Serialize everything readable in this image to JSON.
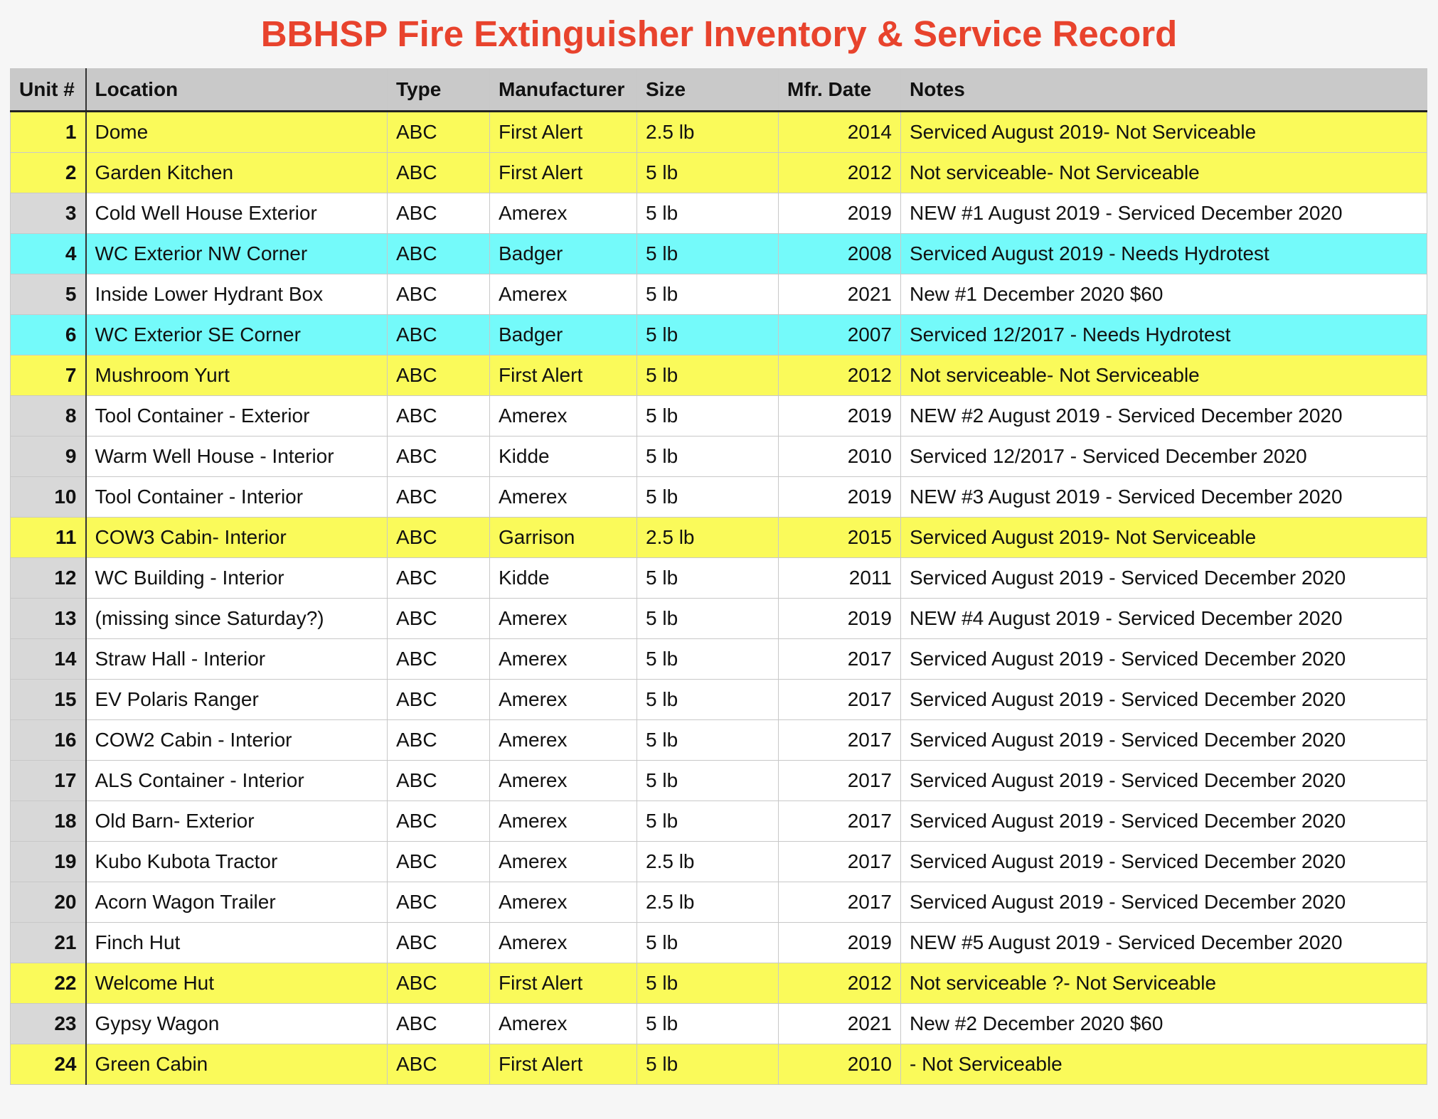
{
  "title": "BBHSP Fire Extinguisher Inventory & Service Record",
  "colors": {
    "title": "#e8432d",
    "header_bg": "#c9c9c9",
    "highlight_yellow": "#fafa5a",
    "highlight_cyan": "#74fafa",
    "unit_col_bg": "#d8d8d8"
  },
  "columns": [
    "Unit #",
    "Location",
    "Type",
    "Manufacturer",
    "Size",
    "Mfr. Date",
    "Notes"
  ],
  "rows": [
    {
      "unit": "1",
      "location": "Dome",
      "type": "ABC",
      "manufacturer": "First Alert",
      "size": "2.5 lb",
      "mfr_date": "2014",
      "notes": "Serviced  August 2019- Not Serviceable",
      "highlight": "yellow"
    },
    {
      "unit": "2",
      "location": "Garden Kitchen",
      "type": "ABC",
      "manufacturer": "First Alert",
      "size": "5 lb",
      "mfr_date": "2012",
      "notes": "Not serviceable- Not Serviceable",
      "highlight": "yellow"
    },
    {
      "unit": "3",
      "location": "Cold Well House Exterior",
      "type": "ABC",
      "manufacturer": "Amerex",
      "size": "5 lb",
      "mfr_date": "2019",
      "notes": "NEW #1 August 2019 - Serviced December 2020",
      "highlight": ""
    },
    {
      "unit": "4",
      "location": "WC Exterior NW Corner",
      "type": "ABC",
      "manufacturer": "Badger",
      "size": "5 lb",
      "mfr_date": "2008",
      "notes": "Serviced August 2019 - Needs Hydrotest",
      "highlight": "cyan"
    },
    {
      "unit": "5",
      "location": "Inside Lower Hydrant Box",
      "type": "ABC",
      "manufacturer": "Amerex",
      "size": "5 lb",
      "mfr_date": "2021",
      "notes": "New #1 December 2020  $60",
      "highlight": ""
    },
    {
      "unit": "6",
      "location": "WC Exterior SE Corner",
      "type": "ABC",
      "manufacturer": "Badger",
      "size": "5 lb",
      "mfr_date": "2007",
      "notes": "Serviced 12/2017 - Needs Hydrotest",
      "highlight": "cyan"
    },
    {
      "unit": "7",
      "location": "Mushroom Yurt",
      "type": "ABC",
      "manufacturer": "First Alert",
      "size": "5 lb",
      "mfr_date": "2012",
      "notes": "Not serviceable- Not Serviceable",
      "highlight": "yellow"
    },
    {
      "unit": "8",
      "location": "Tool Container - Exterior",
      "type": "ABC",
      "manufacturer": "Amerex",
      "size": "5 lb",
      "mfr_date": "2019",
      "notes": "NEW #2 August 2019 - Serviced December 2020",
      "highlight": ""
    },
    {
      "unit": "9",
      "location": "Warm Well House - Interior",
      "type": "ABC",
      "manufacturer": "Kidde",
      "size": "5 lb",
      "mfr_date": "2010",
      "notes": "Serviced 12/2017 - Serviced December 2020",
      "highlight": ""
    },
    {
      "unit": "10",
      "location": "Tool Container - Interior",
      "type": "ABC",
      "manufacturer": "Amerex",
      "size": "5 lb",
      "mfr_date": "2019",
      "notes": "NEW #3 August 2019 - Serviced December 2020",
      "highlight": ""
    },
    {
      "unit": "11",
      "location": "COW3 Cabin- Interior",
      "type": "ABC",
      "manufacturer": "Garrison",
      "size": "2.5 lb",
      "mfr_date": "2015",
      "notes": "Serviced  August 2019- Not Serviceable",
      "highlight": "yellow"
    },
    {
      "unit": "12",
      "location": "WC Building - Interior",
      "type": "ABC",
      "manufacturer": "Kidde",
      "size": "5 lb",
      "mfr_date": "2011",
      "notes": "Serviced  August 2019 - Serviced December 2020",
      "highlight": ""
    },
    {
      "unit": "13",
      "location": "(missing since Saturday?)",
      "type": "ABC",
      "manufacturer": "Amerex",
      "size": "5 lb",
      "mfr_date": "2019",
      "notes": "NEW #4 August 2019 - Serviced December 2020",
      "highlight": ""
    },
    {
      "unit": "14",
      "location": "Straw Hall - Interior",
      "type": "ABC",
      "manufacturer": "Amerex",
      "size": "5 lb",
      "mfr_date": "2017",
      "notes": "Serviced  August 2019 - Serviced December 2020",
      "highlight": ""
    },
    {
      "unit": "15",
      "location": "EV Polaris Ranger",
      "type": "ABC",
      "manufacturer": "Amerex",
      "size": "5 lb",
      "mfr_date": "2017",
      "notes": "Serviced  August 2019 - Serviced December 2020",
      "highlight": ""
    },
    {
      "unit": "16",
      "location": "COW2 Cabin - Interior",
      "type": "ABC",
      "manufacturer": "Amerex",
      "size": "5 lb",
      "mfr_date": "2017",
      "notes": "Serviced  August 2019 - Serviced December 2020",
      "highlight": ""
    },
    {
      "unit": "17",
      "location": "ALS Container - Interior",
      "type": "ABC",
      "manufacturer": "Amerex",
      "size": "5 lb",
      "mfr_date": "2017",
      "notes": "Serviced  August 2019 - Serviced December 2020",
      "highlight": ""
    },
    {
      "unit": "18",
      "location": "Old Barn- Exterior",
      "type": "ABC",
      "manufacturer": "Amerex",
      "size": "5 lb",
      "mfr_date": "2017",
      "notes": "Serviced  August 2019 - Serviced December 2020",
      "highlight": ""
    },
    {
      "unit": "19",
      "location": "Kubo Kubota Tractor",
      "type": "ABC",
      "manufacturer": "Amerex",
      "size": "2.5 lb",
      "mfr_date": "2017",
      "notes": "Serviced  August 2019 - Serviced December 2020",
      "highlight": ""
    },
    {
      "unit": "20",
      "location": "Acorn Wagon Trailer",
      "type": "ABC",
      "manufacturer": "Amerex",
      "size": "2.5 lb",
      "mfr_date": "2017",
      "notes": "Serviced  August 2019 - Serviced December 2020",
      "highlight": ""
    },
    {
      "unit": "21",
      "location": "Finch Hut",
      "type": "ABC",
      "manufacturer": "Amerex",
      "size": "5 lb",
      "mfr_date": "2019",
      "notes": "NEW #5 August 2019 - Serviced December 2020",
      "highlight": ""
    },
    {
      "unit": "22",
      "location": "Welcome Hut",
      "type": "ABC",
      "manufacturer": "First Alert",
      "size": "5 lb",
      "mfr_date": "2012",
      "notes": "Not serviceable ?- Not Serviceable",
      "highlight": "yellow"
    },
    {
      "unit": "23",
      "location": "Gypsy Wagon",
      "type": "ABC",
      "manufacturer": "Amerex",
      "size": "5 lb",
      "mfr_date": "2021",
      "notes": "New #2 December 2020  $60",
      "highlight": ""
    },
    {
      "unit": "24",
      "location": "Green Cabin",
      "type": "ABC",
      "manufacturer": "First Alert",
      "size": "5 lb",
      "mfr_date": "2010",
      "notes": "- Not Serviceable",
      "highlight": "yellow"
    }
  ]
}
